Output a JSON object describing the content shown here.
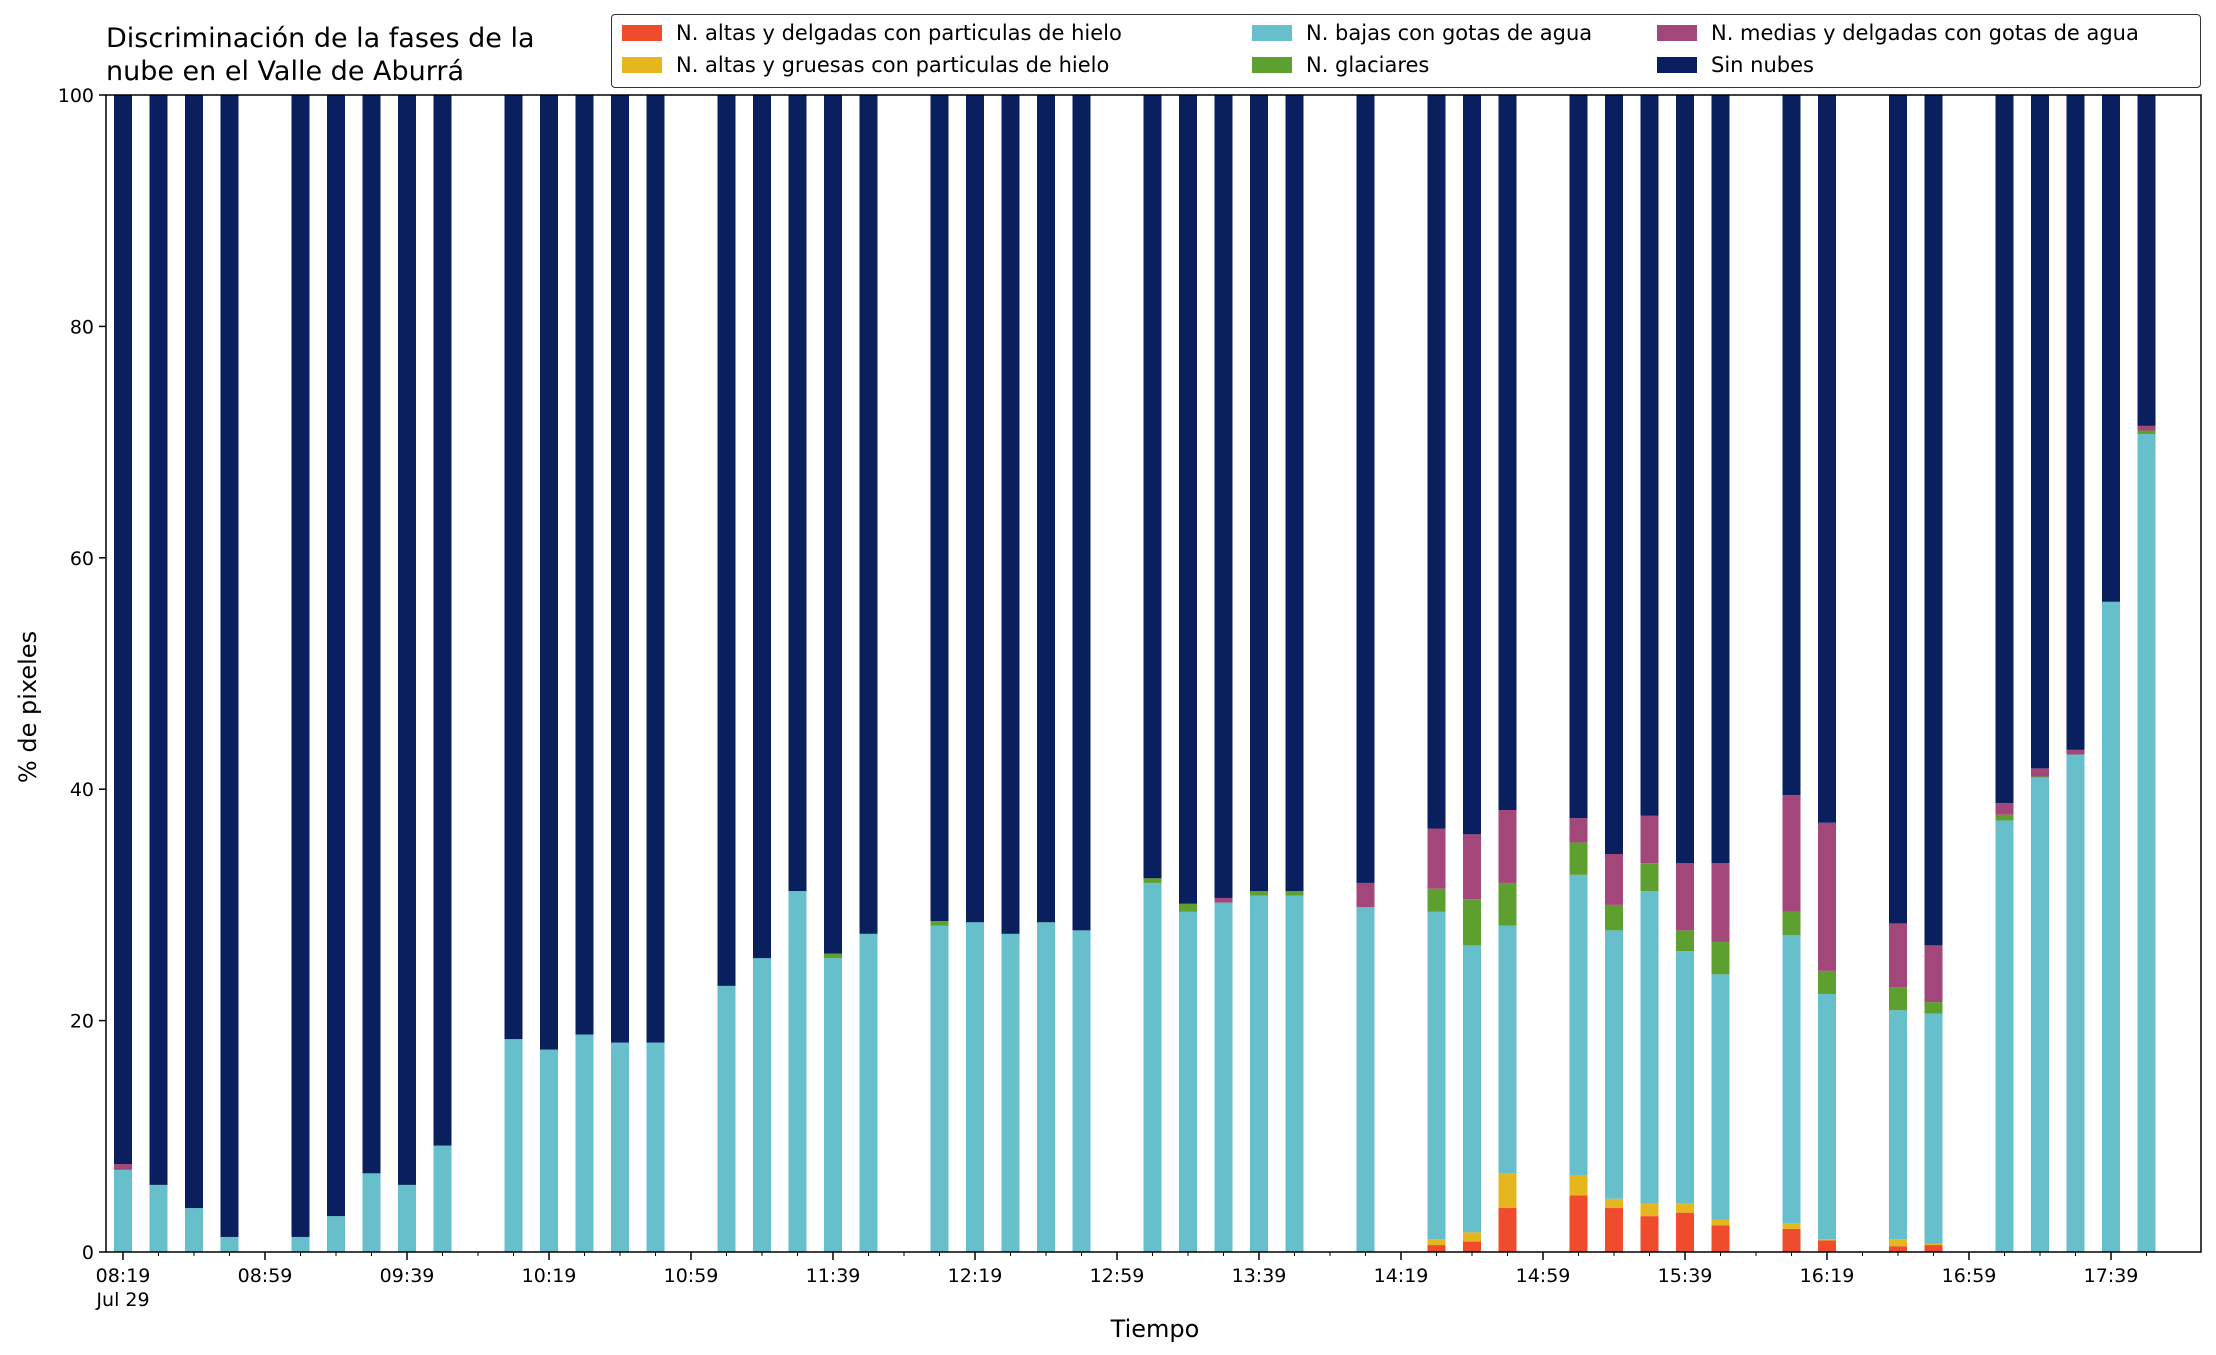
{
  "chart_data": {
    "type": "bar",
    "stacked": true,
    "title": "Discriminación de la fases de la\nnube en el Valle de Aburrá",
    "xlabel": "Tiempo",
    "ylabel": "% de pixeles",
    "ylim": [
      0,
      100
    ],
    "yticks": [
      "0",
      "20",
      "40",
      "60",
      "80",
      "100"
    ],
    "xticks": [
      {
        "label": "08:19\nJul 29",
        "slot": 0
      },
      {
        "label": "08:59",
        "slot": 4
      },
      {
        "label": "09:39",
        "slot": 8
      },
      {
        "label": "10:19",
        "slot": 12
      },
      {
        "label": "10:59",
        "slot": 16
      },
      {
        "label": "11:39",
        "slot": 20
      },
      {
        "label": "12:19",
        "slot": 24
      },
      {
        "label": "12:59",
        "slot": 28
      },
      {
        "label": "13:39",
        "slot": 32
      },
      {
        "label": "14:19",
        "slot": 36
      },
      {
        "label": "14:59",
        "slot": 40
      },
      {
        "label": "15:39",
        "slot": 44
      },
      {
        "label": "16:19",
        "slot": 48
      },
      {
        "label": "16:59",
        "slot": 52
      },
      {
        "label": "17:39",
        "slot": 56
      }
    ],
    "minor_tick_step_slots": 1,
    "slot_minutes": 10,
    "start_time": "08:19",
    "total_slots": 58,
    "legend_position": "top-right",
    "x": [
      0,
      1,
      2,
      3,
      5,
      6,
      7,
      8,
      9,
      11,
      12,
      13,
      14,
      15,
      17,
      18,
      19,
      20,
      21,
      23,
      24,
      25,
      26,
      27,
      29,
      30,
      31,
      32,
      33,
      35,
      37,
      38,
      39,
      41,
      42,
      43,
      44,
      45,
      47,
      48,
      50,
      51,
      53,
      54,
      55,
      56,
      57
    ],
    "series": [
      {
        "name": "N. altas y delgadas con particulas de hielo",
        "color": "#ee4c2c",
        "values": [
          0,
          0,
          0,
          0,
          0,
          0,
          0,
          0,
          0,
          0,
          0,
          0,
          0,
          0,
          0,
          0,
          0,
          0,
          0,
          0,
          0,
          0,
          0,
          0,
          0,
          0,
          0,
          0,
          0,
          0,
          0.6,
          0.9,
          3.8,
          4.9,
          3.8,
          3.1,
          3.4,
          2.3,
          2.0,
          1.0,
          0.5,
          0.6,
          0,
          0,
          0,
          0,
          0
        ]
      },
      {
        "name": "N. altas y gruesas con particulas de hielo",
        "color": "#e6b61e",
        "values": [
          0,
          0,
          0,
          0,
          0,
          0,
          0,
          0,
          0,
          0,
          0,
          0,
          0,
          0,
          0,
          0,
          0,
          0,
          0,
          0,
          0,
          0,
          0,
          0,
          0,
          0,
          0,
          0,
          0,
          0,
          0.5,
          0.8,
          3.0,
          1.7,
          0.8,
          1.1,
          0.8,
          0.5,
          0.5,
          0.1,
          0.6,
          0.1,
          0,
          0,
          0,
          0,
          0
        ]
      },
      {
        "name": "N. bajas con gotas de agua",
        "color": "#66bfcb",
        "values": [
          7.1,
          5.8,
          3.8,
          1.3,
          1.3,
          3.1,
          6.8,
          5.8,
          9.2,
          18.4,
          17.5,
          18.8,
          18.1,
          18.1,
          23.0,
          25.4,
          31.2,
          25.4,
          27.5,
          28.2,
          28.5,
          27.5,
          28.5,
          27.8,
          31.9,
          29.4,
          30.2,
          30.8,
          30.8,
          29.8,
          28.3,
          24.8,
          21.4,
          26.0,
          23.2,
          27.0,
          21.8,
          21.2,
          24.9,
          21.2,
          19.8,
          19.9,
          37.3,
          41.0,
          43.0,
          56.2,
          70.7
        ]
      },
      {
        "name": "N. glaciares",
        "color": "#5ea02f",
        "values": [
          0,
          0,
          0,
          0,
          0,
          0,
          0,
          0,
          0,
          0,
          0,
          0,
          0,
          0,
          0,
          0,
          0,
          0.4,
          0,
          0.4,
          0,
          0,
          0,
          0,
          0.4,
          0.7,
          0,
          0.4,
          0.4,
          0,
          2.0,
          4.0,
          3.7,
          2.8,
          2.2,
          2.4,
          1.8,
          2.8,
          2.0,
          2.0,
          2.0,
          1.0,
          0.5,
          0.1,
          0,
          0,
          0.3
        ]
      },
      {
        "name": "N. medias y delgadas con gotas de agua",
        "color": "#a34679",
        "values": [
          0.5,
          0,
          0,
          0,
          0,
          0,
          0,
          0,
          0,
          0,
          0,
          0,
          0,
          0,
          0,
          0,
          0,
          0,
          0,
          0,
          0,
          0,
          0,
          0,
          0,
          0,
          0.4,
          0,
          0,
          2.1,
          5.2,
          5.6,
          6.3,
          2.1,
          4.4,
          4.1,
          5.8,
          6.8,
          10.1,
          12.8,
          5.5,
          4.9,
          1.0,
          0.7,
          0.4,
          0,
          0.4
        ]
      },
      {
        "name": "Sin nubes",
        "color": "#0a1f5e",
        "values": [
          92.4,
          94.2,
          96.2,
          98.7,
          98.7,
          96.9,
          93.2,
          94.2,
          90.8,
          81.6,
          82.5,
          81.2,
          81.9,
          81.9,
          77.0,
          74.6,
          68.8,
          74.2,
          72.5,
          71.4,
          71.5,
          72.5,
          71.5,
          72.2,
          67.7,
          69.9,
          69.4,
          68.8,
          68.8,
          68.1,
          63.4,
          63.9,
          61.8,
          62.5,
          65.6,
          62.3,
          66.4,
          66.4,
          60.5,
          62.9,
          71.6,
          73.5,
          61.2,
          58.2,
          56.6,
          43.8,
          28.6
        ]
      }
    ]
  }
}
